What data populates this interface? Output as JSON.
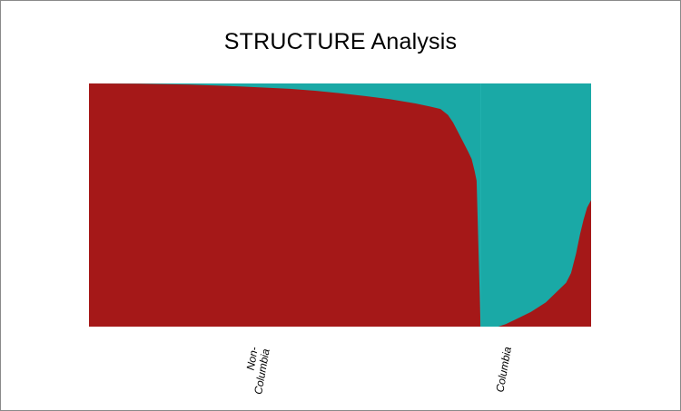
{
  "chart_data": {
    "type": "area",
    "title": "STRUCTURE Analysis",
    "xlabel": "",
    "ylabel": "",
    "ylim": [
      0,
      1
    ],
    "grid": false,
    "legend": "none",
    "colors": {
      "cluster_1": "#a51818",
      "cluster_2": "#1aa9a6"
    },
    "groups": [
      {
        "label": "Non-\nColumbia",
        "label_lines": [
          "Non-",
          "Columbia"
        ],
        "x_range": [
          0,
          0.78
        ],
        "q_cluster_1": [
          [
            0.0,
            1.0
          ],
          [
            0.1,
            0.999
          ],
          [
            0.2,
            0.995
          ],
          [
            0.3,
            0.988
          ],
          [
            0.4,
            0.978
          ],
          [
            0.45,
            0.97
          ],
          [
            0.5,
            0.96
          ],
          [
            0.55,
            0.948
          ],
          [
            0.6,
            0.935
          ],
          [
            0.65,
            0.918
          ],
          [
            0.68,
            0.905
          ],
          [
            0.7,
            0.895
          ],
          [
            0.715,
            0.87
          ],
          [
            0.725,
            0.84
          ],
          [
            0.735,
            0.8
          ],
          [
            0.745,
            0.76
          ],
          [
            0.755,
            0.72
          ],
          [
            0.762,
            0.69
          ],
          [
            0.768,
            0.64
          ],
          [
            0.772,
            0.6
          ],
          [
            0.776,
            0.3
          ],
          [
            0.78,
            0.0
          ]
        ]
      },
      {
        "label": "Columbia",
        "label_lines": [
          "Columbia"
        ],
        "x_range": [
          0.78,
          1.0
        ],
        "q_cluster_1": [
          [
            0.78,
            0.0
          ],
          [
            0.815,
            0.0
          ],
          [
            0.83,
            0.01
          ],
          [
            0.85,
            0.03
          ],
          [
            0.88,
            0.06
          ],
          [
            0.91,
            0.1
          ],
          [
            0.935,
            0.15
          ],
          [
            0.95,
            0.18
          ],
          [
            0.96,
            0.22
          ],
          [
            0.97,
            0.3
          ],
          [
            0.978,
            0.38
          ],
          [
            0.985,
            0.44
          ],
          [
            0.992,
            0.49
          ],
          [
            1.0,
            0.52
          ]
        ]
      }
    ]
  }
}
